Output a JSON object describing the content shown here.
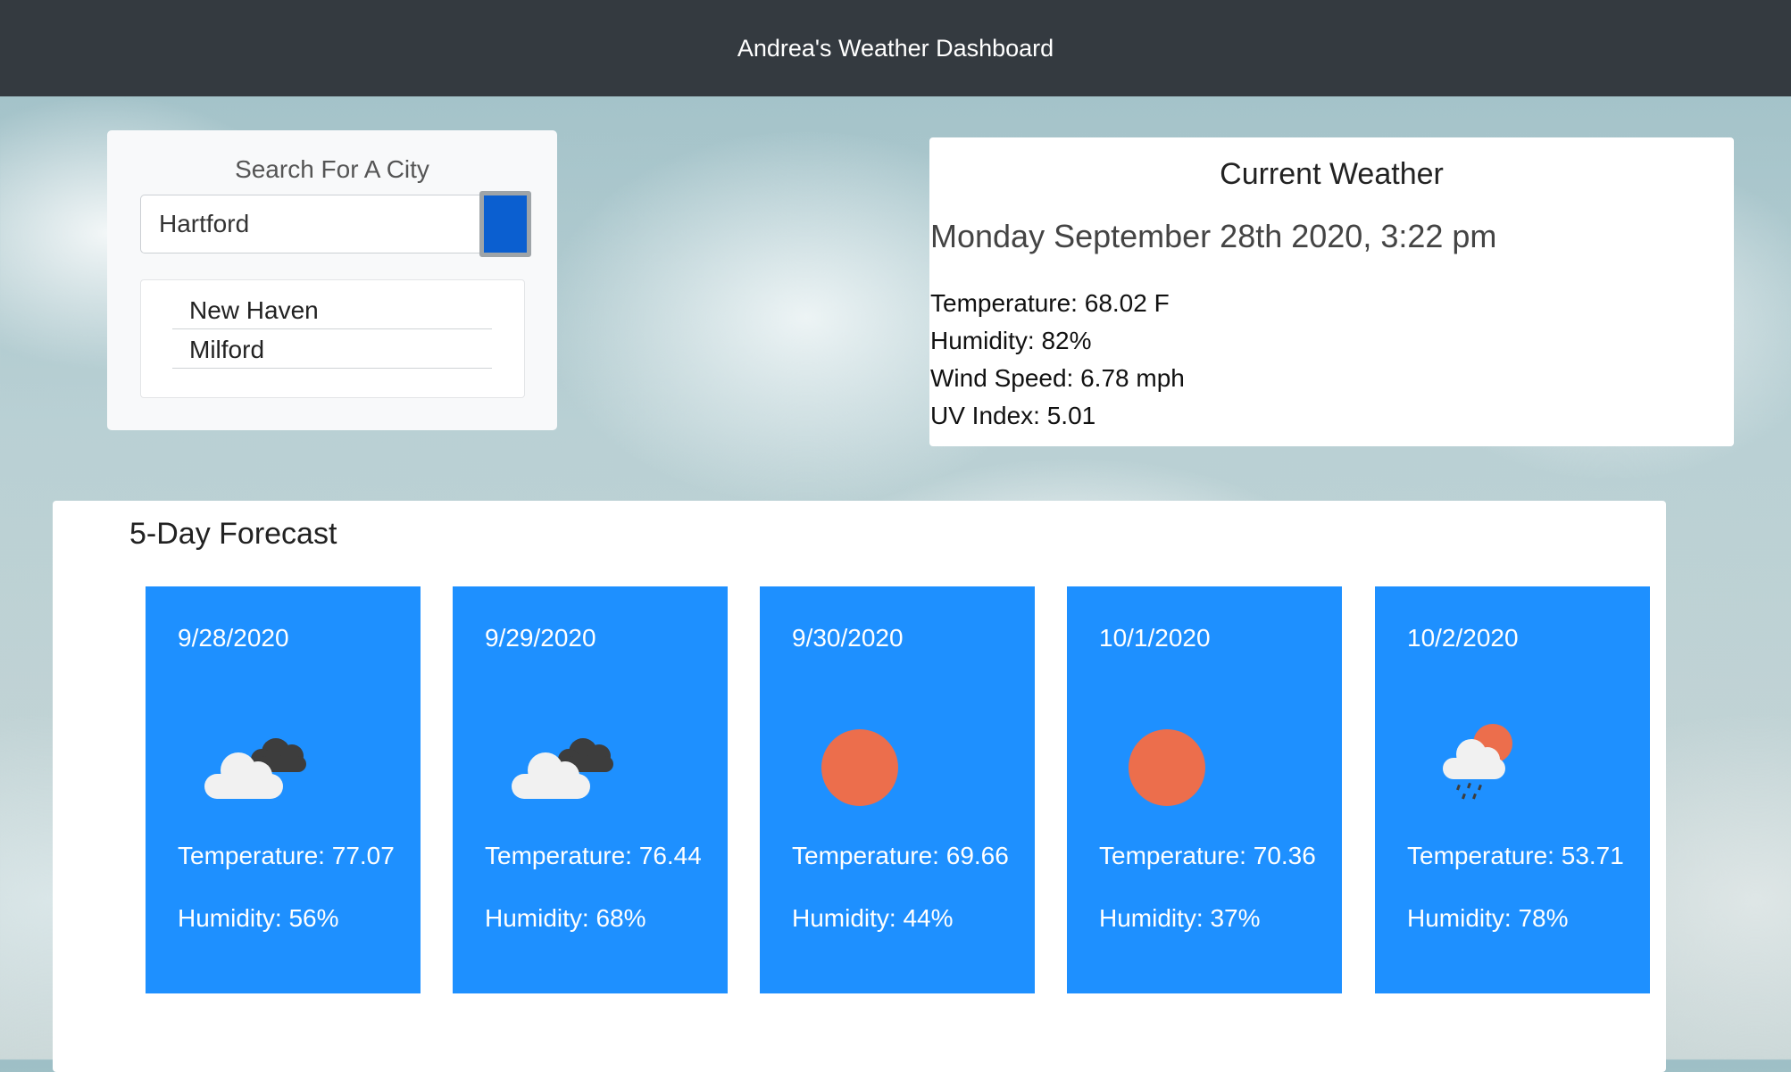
{
  "navbar": {
    "title": "Andrea's Weather Dashboard"
  },
  "search": {
    "title": "Search For A City",
    "input_value": "Hartford",
    "history": [
      "New Haven",
      "Milford"
    ]
  },
  "current": {
    "title": "Current Weather",
    "datetime": "Monday September 28th 2020, 3:22 pm",
    "temperature": "Temperature: 68.02 F",
    "humidity": "Humidity: 82%",
    "wind": "Wind Speed: 6.78 mph",
    "uv": "UV Index: 5.01"
  },
  "forecast": {
    "title": "5-Day Forecast",
    "days": [
      {
        "date": "9/28/2020",
        "icon": "cloudy-icon",
        "temperature": "Temperature: 77.07",
        "humidity": "Humidity: 56%"
      },
      {
        "date": "9/29/2020",
        "icon": "cloudy-icon",
        "temperature": "Temperature: 76.44",
        "humidity": "Humidity: 68%"
      },
      {
        "date": "9/30/2020",
        "icon": "sun-icon",
        "temperature": "Temperature: 69.66",
        "humidity": "Humidity: 44%"
      },
      {
        "date": "10/1/2020",
        "icon": "sun-icon",
        "temperature": "Temperature: 70.36",
        "humidity": "Humidity: 37%"
      },
      {
        "date": "10/2/2020",
        "icon": "rain-sun-icon",
        "temperature": "Temperature: 53.71",
        "humidity": "Humidity: 78%"
      }
    ]
  },
  "colors": {
    "navbar": "#343a40",
    "forecast_card": "#1e90ff",
    "search_button": "#0b5fd0",
    "sun": "#ec6e4c",
    "cloud_light": "#f1f1f1",
    "cloud_dark": "#3d3d3d"
  }
}
